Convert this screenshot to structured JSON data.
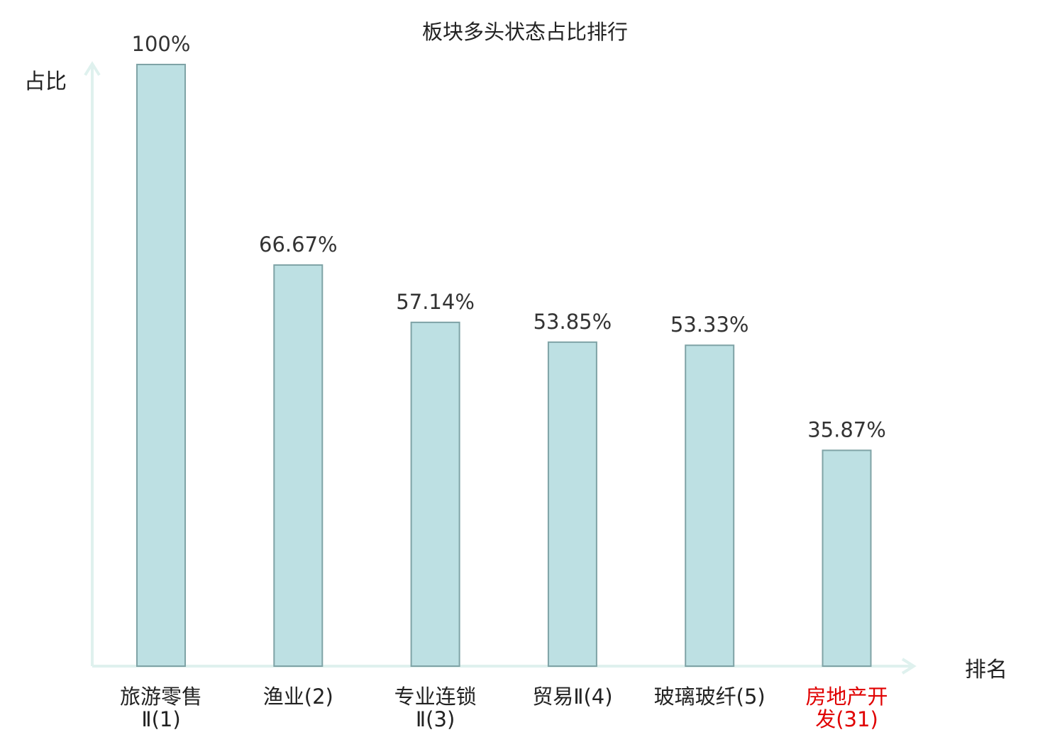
{
  "chart_data": {
    "type": "bar",
    "title": "板块多头状态占比排行",
    "ylabel": "占比",
    "xlabel": "排名",
    "categories": [
      [
        "旅游零售",
        "Ⅱ(1)"
      ],
      [
        "渔业(2)"
      ],
      [
        "专业连锁",
        "Ⅱ(3)"
      ],
      [
        "贸易Ⅱ(4)"
      ],
      [
        "玻璃玻纤(5)"
      ],
      [
        "房地产开",
        "发(31)"
      ]
    ],
    "values": [
      100,
      66.67,
      57.14,
      53.85,
      53.33,
      35.87
    ],
    "value_labels": [
      "100%",
      "66.67%",
      "57.14%",
      "53.85%",
      "53.33%",
      "35.87%"
    ],
    "ylim": [
      0,
      100
    ],
    "grid": false,
    "colors": {
      "bar_fill": "#bde0e3",
      "bar_stroke": "#7fa3a6",
      "axis": "#dff1ee",
      "label": "#222222",
      "highlight_label": "#e00000"
    },
    "highlight_index": 5
  }
}
